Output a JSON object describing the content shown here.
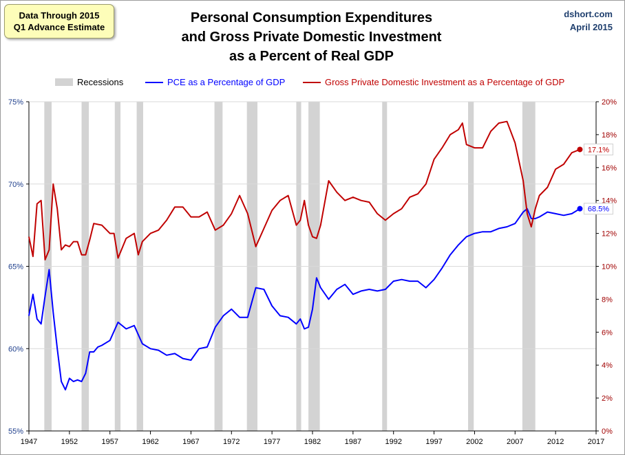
{
  "note": {
    "line1": "Data Through 2015",
    "line2": "Q1 Advance Estimate"
  },
  "title": {
    "line1": "Personal Consumption Expenditures",
    "line2": "and Gross Private Domestic Investment",
    "line3": "as a Percent of Real GDP"
  },
  "source": {
    "site": "dshort.com",
    "date": "April 2015"
  },
  "colors": {
    "pce": "#0000ff",
    "gpdi": "#c00000",
    "recession": "#d3d3d3",
    "grid": "#d9d9d9"
  },
  "legend": {
    "recessions": "Recessions",
    "pce": "PCE as a Percentage of GDP",
    "gpdi": "Gross Private Domestic Investment as a Percentage of GDP"
  },
  "chart_data": {
    "type": "line",
    "title": "Personal Consumption Expenditures and Gross Private Domestic Investment as a Percent of Real GDP",
    "xlim": [
      1947,
      2017
    ],
    "x_ticks": [
      1947,
      1952,
      1957,
      1962,
      1967,
      1972,
      1977,
      1982,
      1987,
      1992,
      1997,
      2002,
      2007,
      2012,
      2017
    ],
    "y_left": {
      "range": [
        55,
        75
      ],
      "ticks": [
        "55%",
        "60%",
        "65%",
        "70%",
        "75%"
      ]
    },
    "y_right": {
      "range": [
        0,
        20
      ],
      "ticks": [
        "0%",
        "2%",
        "4%",
        "6%",
        "8%",
        "10%",
        "12%",
        "14%",
        "16%",
        "18%",
        "20%"
      ]
    },
    "grid": true,
    "legend_position": "top",
    "recessions": [
      [
        1948.9,
        1949.8
      ],
      [
        1953.5,
        1954.4
      ],
      [
        1957.6,
        1958.3
      ],
      [
        1960.3,
        1961.1
      ],
      [
        1969.9,
        1970.9
      ],
      [
        1973.9,
        1975.2
      ],
      [
        1980.0,
        1980.6
      ],
      [
        1981.5,
        1982.9
      ],
      [
        1990.6,
        1991.2
      ],
      [
        2001.2,
        2001.9
      ],
      [
        2007.9,
        2009.5
      ]
    ],
    "series": [
      {
        "name": "PCE as a Percentage of GDP",
        "axis": "left",
        "x": [
          1947,
          1947.5,
          1948,
          1948.5,
          1949,
          1949.5,
          1950,
          1950.5,
          1951,
          1951.5,
          1952,
          1952.5,
          1953,
          1953.5,
          1954,
          1954.5,
          1955,
          1955.5,
          1956,
          1957,
          1958,
          1959,
          1960,
          1961,
          1962,
          1963,
          1964,
          1965,
          1966,
          1967,
          1968,
          1969,
          1970,
          1971,
          1972,
          1973,
          1974,
          1975,
          1976,
          1977,
          1978,
          1979,
          1980,
          1980.5,
          1981,
          1981.5,
          1982,
          1982.5,
          1983,
          1984,
          1985,
          1986,
          1987,
          1988,
          1989,
          1990,
          1991,
          1992,
          1993,
          1994,
          1995,
          1996,
          1997,
          1998,
          1999,
          2000,
          2001,
          2002,
          2003,
          2004,
          2005,
          2006,
          2007,
          2008,
          2008.5,
          2009,
          2009.5,
          2010,
          2011,
          2012,
          2013,
          2014,
          2015
        ],
        "values": [
          62.0,
          63.3,
          61.8,
          61.5,
          63.2,
          64.8,
          62.2,
          60.0,
          58.0,
          57.5,
          58.2,
          58.0,
          58.1,
          58.0,
          58.5,
          59.8,
          59.8,
          60.1,
          60.2,
          60.5,
          61.6,
          61.2,
          61.4,
          60.3,
          60.0,
          59.9,
          59.6,
          59.7,
          59.4,
          59.3,
          60.0,
          60.1,
          61.3,
          62.0,
          62.4,
          61.9,
          61.9,
          63.7,
          63.6,
          62.6,
          62.0,
          61.9,
          61.5,
          61.8,
          61.2,
          61.3,
          62.4,
          64.3,
          63.7,
          63.0,
          63.6,
          63.9,
          63.3,
          63.5,
          63.6,
          63.5,
          63.6,
          64.1,
          64.2,
          64.1,
          64.1,
          63.7,
          64.2,
          64.9,
          65.7,
          66.3,
          66.8,
          67.0,
          67.1,
          67.1,
          67.3,
          67.4,
          67.6,
          68.3,
          68.5,
          67.9,
          67.9,
          68.0,
          68.3,
          68.2,
          68.1,
          68.2,
          68.5
        ]
      },
      {
        "name": "Gross Private Domestic Investment as a Percentage of GDP",
        "axis": "right",
        "x": [
          1947,
          1947.5,
          1948,
          1948.5,
          1949,
          1949.5,
          1950,
          1950.5,
          1951,
          1951.5,
          1952,
          1952.5,
          1953,
          1953.5,
          1954,
          1954.5,
          1955,
          1956,
          1957,
          1957.5,
          1958,
          1959,
          1960,
          1960.5,
          1961,
          1962,
          1963,
          1964,
          1965,
          1966,
          1967,
          1968,
          1969,
          1970,
          1971,
          1972,
          1973,
          1974,
          1975,
          1976,
          1977,
          1978,
          1979,
          1980,
          1980.5,
          1981,
          1981.5,
          1982,
          1982.5,
          1983,
          1984,
          1985,
          1986,
          1987,
          1988,
          1989,
          1990,
          1991,
          1992,
          1993,
          1994,
          1995,
          1996,
          1997,
          1998,
          1999,
          2000,
          2000.5,
          2001,
          2002,
          2003,
          2004,
          2005,
          2006,
          2007,
          2008,
          2008.5,
          2009,
          2009.5,
          2010,
          2011,
          2012,
          2013,
          2014,
          2015
        ],
        "values": [
          11.8,
          10.6,
          13.8,
          14.0,
          10.4,
          11.0,
          15.0,
          13.5,
          11.0,
          11.3,
          11.2,
          11.5,
          11.5,
          10.7,
          10.7,
          11.6,
          12.6,
          12.5,
          12.0,
          12.0,
          10.5,
          11.7,
          12.0,
          10.7,
          11.5,
          12.0,
          12.2,
          12.8,
          13.6,
          13.6,
          13.0,
          13.0,
          13.3,
          12.2,
          12.5,
          13.2,
          14.3,
          13.2,
          11.2,
          12.3,
          13.4,
          14.0,
          14.3,
          12.5,
          12.8,
          14.0,
          12.5,
          11.8,
          11.7,
          12.5,
          15.2,
          14.5,
          14.0,
          14.2,
          14.0,
          13.9,
          13.2,
          12.8,
          13.2,
          13.5,
          14.2,
          14.4,
          15.0,
          16.5,
          17.2,
          18.0,
          18.3,
          18.7,
          17.4,
          17.2,
          17.2,
          18.2,
          18.7,
          18.8,
          17.5,
          15.2,
          13.2,
          12.4,
          13.5,
          14.3,
          14.8,
          15.9,
          16.2,
          16.9,
          17.1
        ]
      }
    ],
    "end_labels": {
      "pce": "68.5%",
      "gpdi": "17.1%"
    }
  }
}
